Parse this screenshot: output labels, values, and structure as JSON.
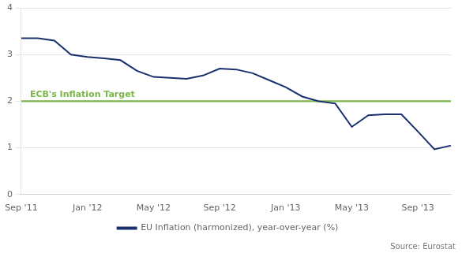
{
  "chart_data": {
    "type": "line",
    "categories": [
      "Sep '11",
      null,
      null,
      null,
      "Jan '12",
      null,
      null,
      null,
      "May '12",
      null,
      null,
      null,
      "Sep '12",
      null,
      null,
      null,
      "Jan '13",
      null,
      null,
      null,
      "May '13",
      null,
      null,
      null,
      "Sep '13",
      null,
      null
    ],
    "series": [
      {
        "name": "EU Inflation (harmonized), year-over-year (%)",
        "color": "#1a2f6e",
        "values": [
          3.35,
          3.35,
          3.3,
          3.0,
          2.95,
          2.92,
          2.88,
          2.65,
          2.52,
          2.5,
          2.48,
          2.55,
          2.7,
          2.68,
          2.6,
          2.45,
          2.3,
          2.1,
          2.0,
          1.95,
          1.45,
          1.7,
          1.72,
          1.72,
          1.35,
          0.97,
          1.05
        ]
      }
    ],
    "annotations": [
      {
        "text": "ECB's Inflation Target",
        "y": 2.0,
        "color": "#7ab648"
      }
    ],
    "source": "Source: Eurostat",
    "ylim": [
      0,
      4
    ],
    "yticks": [
      0,
      1,
      2,
      3,
      4
    ],
    "grid": "y",
    "legend": "bottom"
  }
}
